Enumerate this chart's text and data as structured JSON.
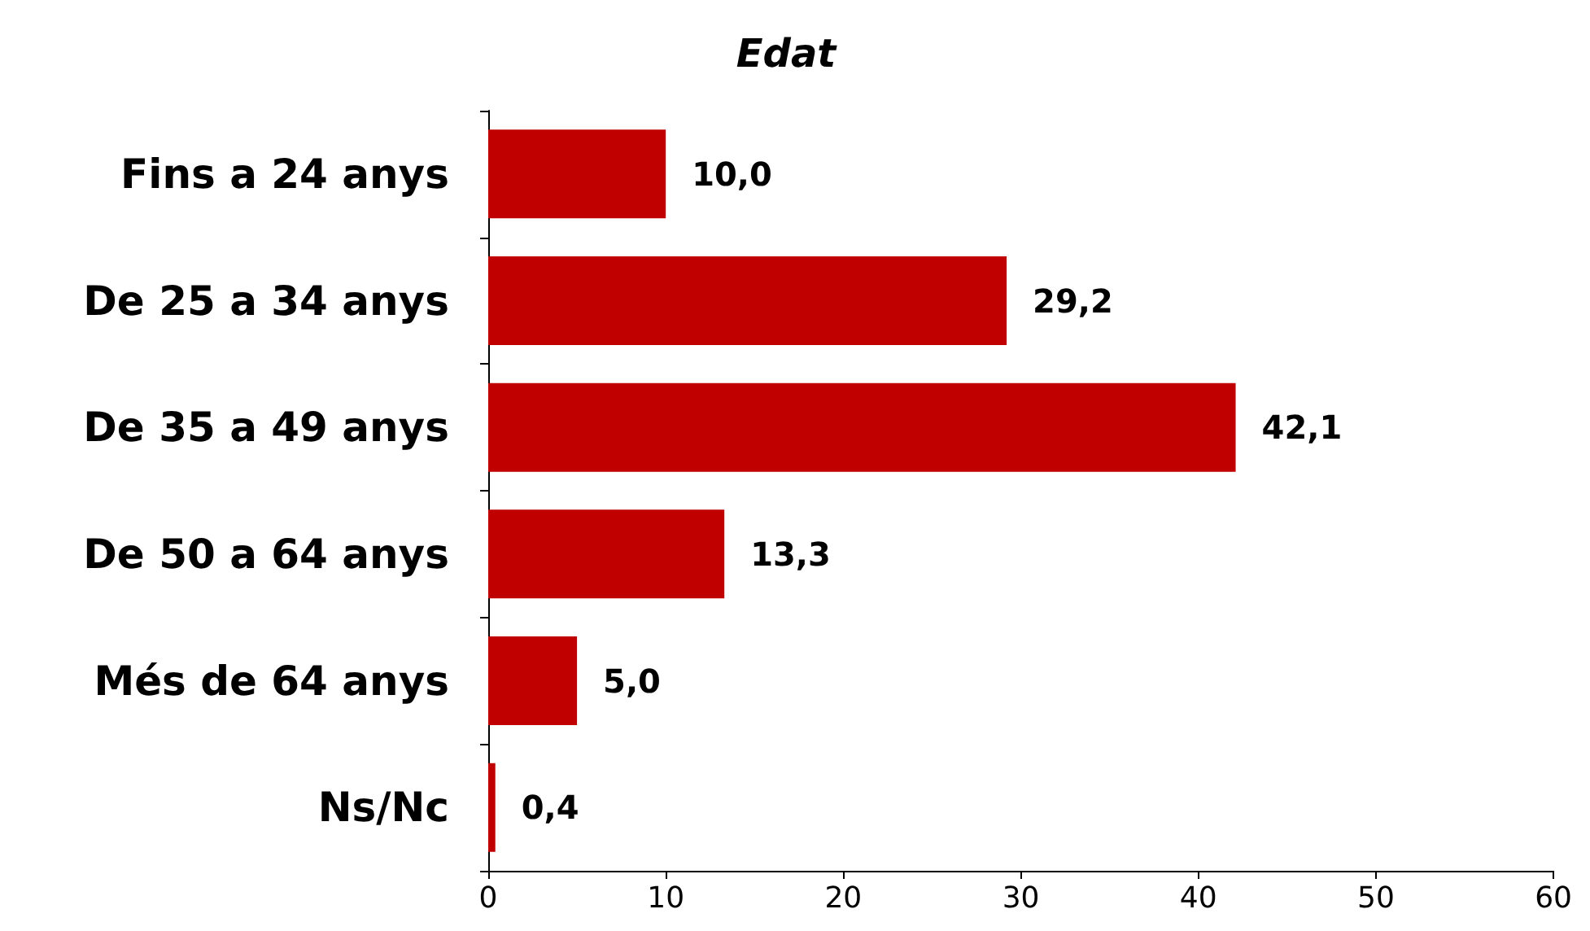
{
  "chart_data": {
    "type": "bar",
    "orientation": "horizontal",
    "title": "Edat",
    "categories": [
      "Fins a 24 anys",
      "De 25 a 34 anys",
      "De 35 a 49 anys",
      "De 50 a 64 anys",
      "Més de 64 anys",
      "Ns/Nc"
    ],
    "values": [
      10.0,
      29.2,
      42.1,
      13.3,
      5.0,
      0.4
    ],
    "value_labels": [
      "10,0",
      "29,2",
      "42,1",
      "13,3",
      "5,0",
      "0,4"
    ],
    "color": "#c00000",
    "xlim": [
      0,
      60
    ],
    "xticks": [
      0,
      10,
      20,
      30,
      40,
      50,
      60
    ],
    "grid": false
  }
}
